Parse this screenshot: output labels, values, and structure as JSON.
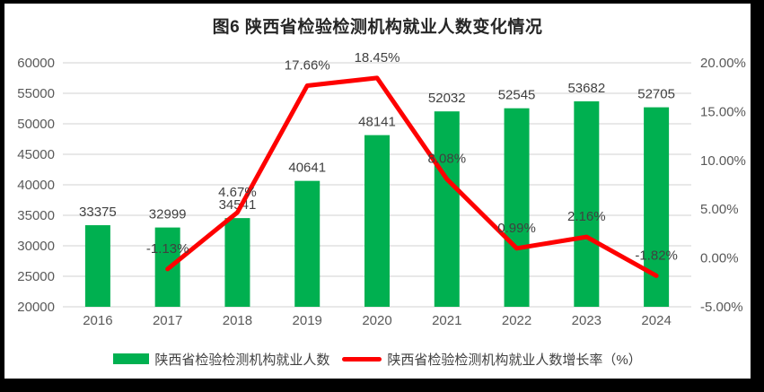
{
  "title": "图6 陕西省检验检测机构就业人数变化情况",
  "legend": {
    "items": [
      {
        "label": "陕西省检验检测机构就业人数",
        "swatch": "bar",
        "color": "#00B050"
      },
      {
        "label": "陕西省检验检测机构就业人数增长率（%）",
        "swatch": "line",
        "color": "#FE0000"
      }
    ]
  },
  "chart_data": {
    "type": "bar",
    "subtype": "bar-line-combo",
    "title": "图6 陕西省检验检测机构就业人数变化情况",
    "categories": [
      "2016",
      "2017",
      "2018",
      "2019",
      "2020",
      "2021",
      "2022",
      "2023",
      "2024"
    ],
    "series": [
      {
        "name": "陕西省检验检测机构就业人数",
        "type": "bar",
        "axis": "left",
        "color": "#00B050",
        "values": [
          33375,
          32999,
          34541,
          40641,
          48141,
          52032,
          52545,
          53682,
          52705
        ],
        "data_labels": [
          "33375",
          "32999",
          "34541",
          "40641",
          "48141",
          "52032",
          "52545",
          "53682",
          "52705"
        ]
      },
      {
        "name": "陕西省检验检测机构就业人数增长率（%）",
        "type": "line",
        "axis": "right",
        "color": "#FE0000",
        "values": [
          null,
          -1.13,
          4.67,
          17.66,
          18.45,
          8.08,
          0.99,
          2.16,
          -1.82
        ],
        "data_labels": [
          null,
          "-1.13%",
          "4.67%",
          "17.66%",
          "18.45%",
          "8.08%",
          "0.99%",
          "2.16%",
          "-1.82%"
        ]
      }
    ],
    "y_axis_left": {
      "min": 20000,
      "max": 60000,
      "step": 5000,
      "tick_labels": [
        "60000",
        "55000",
        "50000",
        "45000",
        "40000",
        "35000",
        "30000",
        "25000",
        "20000"
      ]
    },
    "y_axis_right": {
      "min": -5,
      "max": 20,
      "step": 5,
      "tick_labels": [
        "20.00%",
        "15.00%",
        "10.00%",
        "5.00%",
        "0.00%",
        "-5.00%"
      ]
    },
    "grid": true,
    "legend_position": "bottom",
    "colors": {
      "grid": "#D9D9D9",
      "axis_text": "#595959",
      "data_label_text": "#404040",
      "title_text": "#262626",
      "frame_border": "#000000",
      "background": "#FFFFFF"
    }
  }
}
